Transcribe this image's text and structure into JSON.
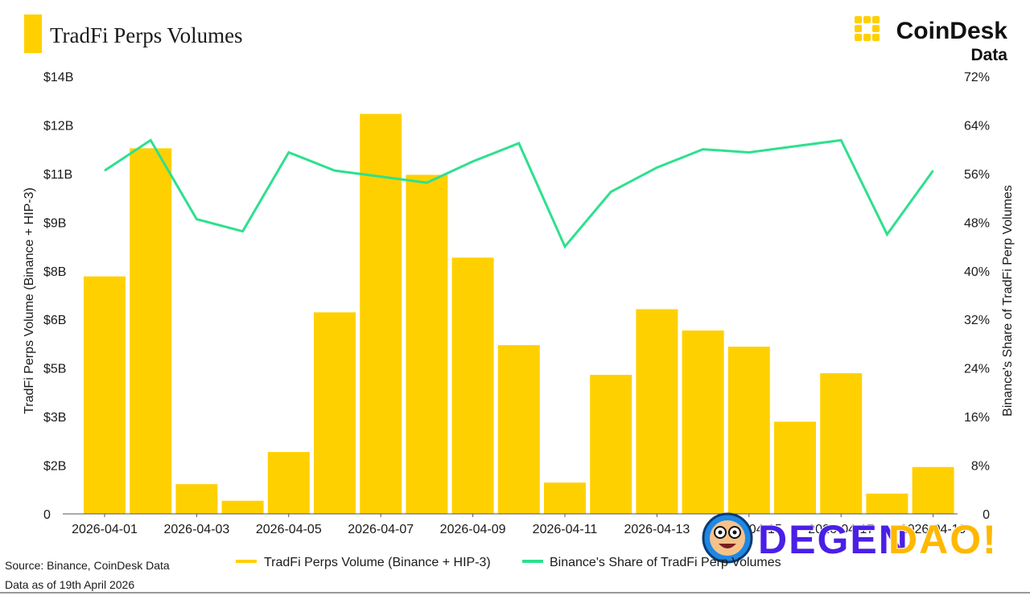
{
  "header": {
    "title": "TradFi Perps Volumes",
    "brand_name": "CoinDesk",
    "brand_sub": "Data"
  },
  "footer": {
    "source": "Source: Binance, CoinDesk Data",
    "as_of": "Data as of 19th April 2026"
  },
  "watermark": {
    "text_a": "DEGEN",
    "text_b": "DAO!"
  },
  "colors": {
    "bar": "#FFD000",
    "line": "#2EE08E",
    "brand_yellow": "#FFD000",
    "watermark_blue": "#4A1FE6",
    "watermark_yellow": "#FFB800"
  },
  "chart_data": {
    "type": "bar",
    "title": "TradFi Perps Volumes",
    "categories": [
      "2026-04-01",
      "2026-04-02",
      "2026-04-03",
      "2026-04-04",
      "2026-04-05",
      "2026-04-06",
      "2026-04-07",
      "2026-04-08",
      "2026-04-09",
      "2026-04-10",
      "2026-04-11",
      "2026-04-12",
      "2026-04-13",
      "2026-04-14",
      "2026-04-15",
      "2026-04-16",
      "2026-04-17",
      "2026-04-18",
      "2026-04-19"
    ],
    "x_tick_labels": [
      "2026-04-01",
      "2026-04-03",
      "2026-04-05",
      "2026-04-07",
      "2026-04-09",
      "2026-04-11",
      "2026-04-13",
      "2026-04-15",
      "2026-04-17",
      "2026-04-19"
    ],
    "ylabel": "TradFi Perps Volume (Binance + HIP-3)",
    "y2label": "Binance's Share of TradFi Perp Volumes",
    "y_tick_labels": [
      "0",
      "$2B",
      "$3B",
      "$5B",
      "$6B",
      "$8B",
      "$9B",
      "$11B",
      "$12B",
      "$14B"
    ],
    "y2_tick_labels": [
      "0",
      "8%",
      "16%",
      "24%",
      "32%",
      "40%",
      "48%",
      "56%",
      "64%",
      "72%"
    ],
    "ylim": [
      0,
      14
    ],
    "y2lim": [
      0,
      72
    ],
    "legend_position": "bottom",
    "grid": false,
    "series": [
      {
        "name": "TradFi Perps Volume (Binance + HIP-3)",
        "type": "bar",
        "axis": "left",
        "values": [
          7.6,
          11.7,
          0.95,
          0.42,
          1.98,
          6.45,
          12.8,
          10.85,
          8.2,
          5.4,
          1.0,
          4.45,
          6.55,
          5.87,
          5.35,
          2.95,
          4.5,
          0.65,
          1.5
        ]
      },
      {
        "name": "Binance's Share of TradFi Perp Volumes",
        "type": "line",
        "axis": "right",
        "values": [
          56.5,
          61.5,
          48.5,
          46.5,
          59.5,
          56.5,
          55.5,
          54.5,
          58,
          61,
          44,
          53,
          57,
          60,
          59.5,
          60.5,
          61.5,
          46,
          56.5
        ]
      }
    ]
  }
}
